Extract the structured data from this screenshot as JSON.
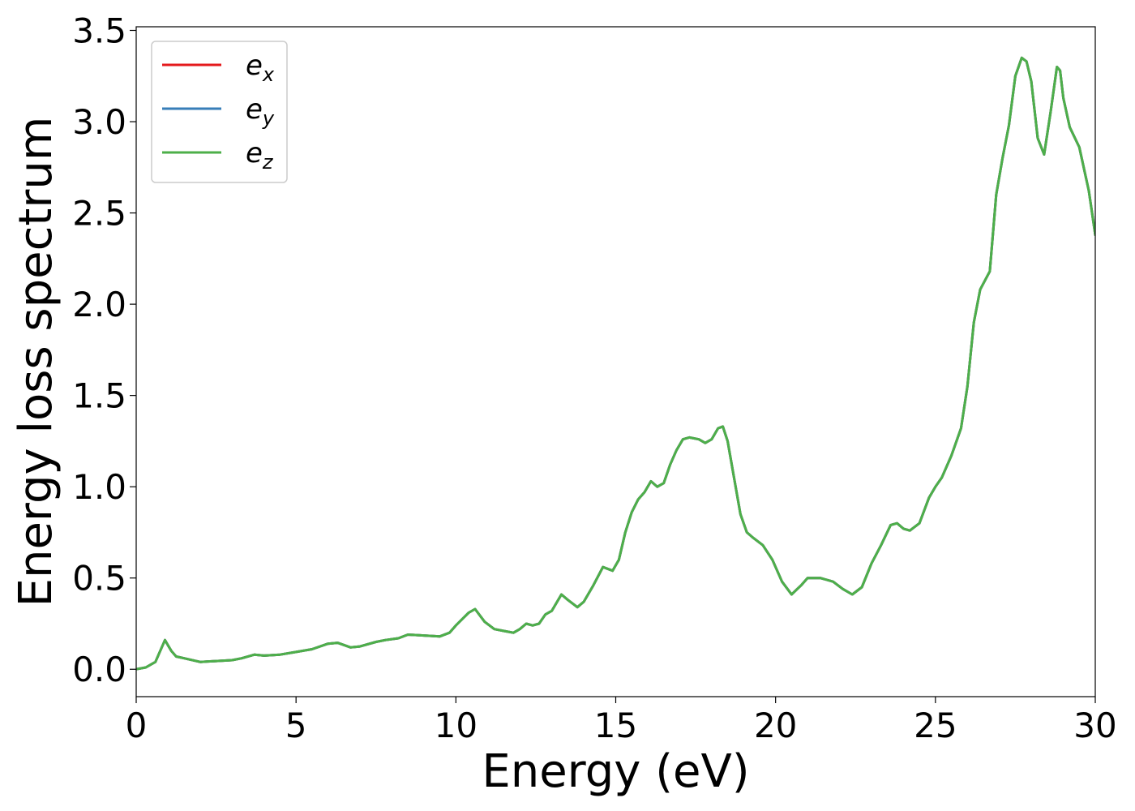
{
  "chart_data": {
    "type": "line",
    "xlabel": "Energy (eV)",
    "ylabel": "Energy loss spectrum",
    "xlim": [
      0,
      30
    ],
    "ylim": [
      -0.15,
      3.52
    ],
    "xticks": [
      0,
      5,
      10,
      15,
      20,
      25,
      30
    ],
    "xtick_labels": [
      "0",
      "5",
      "10",
      "15",
      "20",
      "25",
      "30"
    ],
    "yticks": [
      0.0,
      0.5,
      1.0,
      1.5,
      2.0,
      2.5,
      3.0,
      3.5
    ],
    "ytick_labels": [
      "0.0",
      "0.5",
      "1.0",
      "1.5",
      "2.0",
      "2.5",
      "3.0",
      "3.5"
    ],
    "grid": false,
    "legend_position": "top-left",
    "x": [
      0,
      0.3,
      0.6,
      0.75,
      0.9,
      1.0,
      1.1,
      1.25,
      1.5,
      2.0,
      2.5,
      3.0,
      3.3,
      3.7,
      4.0,
      4.5,
      5.0,
      5.5,
      6.0,
      6.3,
      6.7,
      7.0,
      7.5,
      7.8,
      8.2,
      8.5,
      9.0,
      9.5,
      9.8,
      10.0,
      10.4,
      10.6,
      10.9,
      11.2,
      11.5,
      11.8,
      12.0,
      12.2,
      12.4,
      12.6,
      12.8,
      13.0,
      13.3,
      13.5,
      13.8,
      14.0,
      14.3,
      14.6,
      14.9,
      15.1,
      15.3,
      15.5,
      15.7,
      15.9,
      16.1,
      16.3,
      16.5,
      16.7,
      16.9,
      17.1,
      17.3,
      17.6,
      17.8,
      18.0,
      18.2,
      18.35,
      18.5,
      18.7,
      18.9,
      19.1,
      19.3,
      19.6,
      19.9,
      20.2,
      20.5,
      20.8,
      21.0,
      21.4,
      21.8,
      22.1,
      22.4,
      22.7,
      23.0,
      23.3,
      23.6,
      23.8,
      24.0,
      24.2,
      24.5,
      24.8,
      25.0,
      25.2,
      25.5,
      25.8,
      26.0,
      26.2,
      26.4,
      26.7,
      26.9,
      27.1,
      27.3,
      27.5,
      27.7,
      27.85,
      28.0,
      28.2,
      28.4,
      28.6,
      28.8,
      28.9,
      29.0,
      29.2,
      29.5,
      29.8,
      30.0
    ],
    "series": [
      {
        "name": "e_x",
        "color": "#e41a1c",
        "values": [
          0.0,
          0.01,
          0.04,
          0.1,
          0.16,
          0.13,
          0.1,
          0.07,
          0.06,
          0.04,
          0.045,
          0.05,
          0.06,
          0.08,
          0.075,
          0.08,
          0.095,
          0.11,
          0.14,
          0.145,
          0.12,
          0.125,
          0.15,
          0.16,
          0.17,
          0.19,
          0.185,
          0.18,
          0.2,
          0.24,
          0.31,
          0.33,
          0.26,
          0.22,
          0.21,
          0.2,
          0.22,
          0.25,
          0.24,
          0.25,
          0.3,
          0.32,
          0.41,
          0.38,
          0.34,
          0.37,
          0.46,
          0.56,
          0.54,
          0.6,
          0.75,
          0.86,
          0.93,
          0.97,
          1.03,
          1.0,
          1.02,
          1.12,
          1.2,
          1.26,
          1.27,
          1.26,
          1.24,
          1.26,
          1.32,
          1.33,
          1.25,
          1.05,
          0.85,
          0.75,
          0.72,
          0.68,
          0.6,
          0.48,
          0.41,
          0.46,
          0.5,
          0.5,
          0.48,
          0.44,
          0.41,
          0.45,
          0.58,
          0.68,
          0.79,
          0.8,
          0.77,
          0.76,
          0.8,
          0.94,
          1.0,
          1.05,
          1.17,
          1.32,
          1.55,
          1.9,
          2.08,
          2.18,
          2.6,
          2.8,
          2.98,
          3.25,
          3.35,
          3.33,
          3.22,
          2.91,
          2.82,
          3.05,
          3.3,
          3.28,
          3.13,
          2.97,
          2.86,
          2.62,
          2.38
        ]
      },
      {
        "name": "e_y",
        "color": "#377eb8",
        "values": [
          0.0,
          0.01,
          0.04,
          0.1,
          0.16,
          0.13,
          0.1,
          0.07,
          0.06,
          0.04,
          0.045,
          0.05,
          0.06,
          0.08,
          0.075,
          0.08,
          0.095,
          0.11,
          0.14,
          0.145,
          0.12,
          0.125,
          0.15,
          0.16,
          0.17,
          0.19,
          0.185,
          0.18,
          0.2,
          0.24,
          0.31,
          0.33,
          0.26,
          0.22,
          0.21,
          0.2,
          0.22,
          0.25,
          0.24,
          0.25,
          0.3,
          0.32,
          0.41,
          0.38,
          0.34,
          0.37,
          0.46,
          0.56,
          0.54,
          0.6,
          0.75,
          0.86,
          0.93,
          0.97,
          1.03,
          1.0,
          1.02,
          1.12,
          1.2,
          1.26,
          1.27,
          1.26,
          1.24,
          1.26,
          1.32,
          1.33,
          1.25,
          1.05,
          0.85,
          0.75,
          0.72,
          0.68,
          0.6,
          0.48,
          0.41,
          0.46,
          0.5,
          0.5,
          0.48,
          0.44,
          0.41,
          0.45,
          0.58,
          0.68,
          0.79,
          0.8,
          0.77,
          0.76,
          0.8,
          0.94,
          1.0,
          1.05,
          1.17,
          1.32,
          1.55,
          1.9,
          2.08,
          2.18,
          2.6,
          2.8,
          2.98,
          3.25,
          3.35,
          3.33,
          3.22,
          2.91,
          2.82,
          3.05,
          3.3,
          3.28,
          3.13,
          2.97,
          2.86,
          2.62,
          2.38
        ]
      },
      {
        "name": "e_z",
        "color": "#4daf4a",
        "values": [
          0.0,
          0.01,
          0.04,
          0.1,
          0.16,
          0.13,
          0.1,
          0.07,
          0.06,
          0.04,
          0.045,
          0.05,
          0.06,
          0.08,
          0.075,
          0.08,
          0.095,
          0.11,
          0.14,
          0.145,
          0.12,
          0.125,
          0.15,
          0.16,
          0.17,
          0.19,
          0.185,
          0.18,
          0.2,
          0.24,
          0.31,
          0.33,
          0.26,
          0.22,
          0.21,
          0.2,
          0.22,
          0.25,
          0.24,
          0.25,
          0.3,
          0.32,
          0.41,
          0.38,
          0.34,
          0.37,
          0.46,
          0.56,
          0.54,
          0.6,
          0.75,
          0.86,
          0.93,
          0.97,
          1.03,
          1.0,
          1.02,
          1.12,
          1.2,
          1.26,
          1.27,
          1.26,
          1.24,
          1.26,
          1.32,
          1.33,
          1.25,
          1.05,
          0.85,
          0.75,
          0.72,
          0.68,
          0.6,
          0.48,
          0.41,
          0.46,
          0.5,
          0.5,
          0.48,
          0.44,
          0.41,
          0.45,
          0.58,
          0.68,
          0.79,
          0.8,
          0.77,
          0.76,
          0.8,
          0.94,
          1.0,
          1.05,
          1.17,
          1.32,
          1.55,
          1.9,
          2.08,
          2.18,
          2.6,
          2.8,
          2.98,
          3.25,
          3.35,
          3.33,
          3.22,
          2.91,
          2.82,
          3.05,
          3.3,
          3.28,
          3.13,
          2.97,
          2.86,
          2.62,
          2.38
        ]
      }
    ],
    "legend": [
      {
        "base": "e",
        "sub": "x",
        "color": "#e41a1c"
      },
      {
        "base": "e",
        "sub": "y",
        "color": "#377eb8"
      },
      {
        "base": "e",
        "sub": "z",
        "color": "#4daf4a"
      }
    ]
  }
}
